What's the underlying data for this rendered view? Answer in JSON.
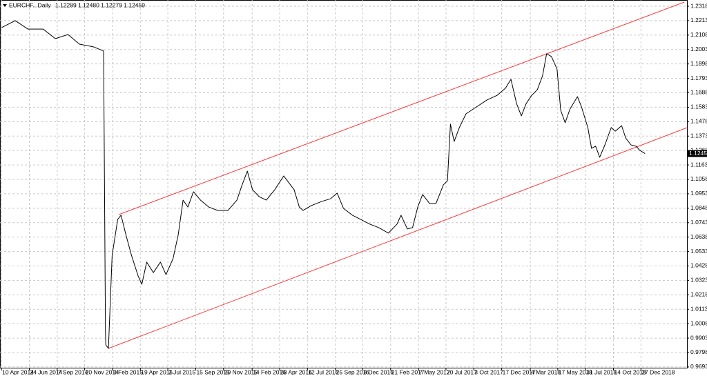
{
  "chart_data": {
    "type": "line",
    "title": "EURCHF...Daily",
    "subtitle": "1.12289 1.12480 1.12279 1.12459",
    "last_price": 1.12459,
    "grid": true,
    "xlim": [
      "6 Apr 2014",
      "30 Apr 2019"
    ],
    "xticks": [
      "10 Apr 2014",
      "24 Jun 2014",
      "7 Sep 2014",
      "20 Nov 2014",
      "3 Feb 2015",
      "19 Apr 2015",
      "2 Jul 2015",
      "15 Sep 2015",
      "29 Nov 2015",
      "14 Feb 2016",
      "28 Apr 2016",
      "12 Jul 2016",
      "25 Sep 2016",
      "8 Dec 2016",
      "21 Feb 2017",
      "7 May 2017",
      "20 Jul 2017",
      "3 Oct 2017",
      "17 Dec 2017",
      "4 Mar 2018",
      "17 May 2018",
      "31 Jul 2018",
      "14 Oct 2018",
      "27 Dec 2018"
    ],
    "ylim": [
      0.96875,
      1.23632
    ],
    "yticks": [
      {
        "value": 1.2318,
        "label": "1.23180"
      },
      {
        "value": 1.2213,
        "label": "1.22130"
      },
      {
        "value": 1.2108,
        "label": "1.21080"
      },
      {
        "value": 1.2003,
        "label": "1.20030"
      },
      {
        "value": 1.1898,
        "label": "1.18980"
      },
      {
        "value": 1.1793,
        "label": "1.17930"
      },
      {
        "value": 1.1688,
        "label": "1.16880"
      },
      {
        "value": 1.1583,
        "label": "1.15830"
      },
      {
        "value": 1.1478,
        "label": "1.14780"
      },
      {
        "value": 1.1373,
        "label": "1.13730"
      },
      {
        "value": 1.1268,
        "label": "1.12680"
      },
      {
        "value": 1.1163,
        "label": "1.11630"
      },
      {
        "value": 1.1058,
        "label": "1.10580"
      },
      {
        "value": 1.0953,
        "label": "1.09530"
      },
      {
        "value": 1.0848,
        "label": "1.08480"
      },
      {
        "value": 1.0743,
        "label": "1.07430"
      },
      {
        "value": 1.0638,
        "label": "1.06380"
      },
      {
        "value": 1.0533,
        "label": "1.05330"
      },
      {
        "value": 1.0428,
        "label": "1.04280"
      },
      {
        "value": 1.0323,
        "label": "1.03230"
      },
      {
        "value": 1.0218,
        "label": "1.02180"
      },
      {
        "value": 1.0113,
        "label": "1.01130"
      },
      {
        "value": 1.0008,
        "label": "1.00080"
      },
      {
        "value": 0.9903,
        "label": "0.99030"
      },
      {
        "value": 0.9798,
        "label": "0.97980"
      },
      {
        "value": 0.9693,
        "label": "0.96930"
      }
    ],
    "series": [
      {
        "color": "#000000",
        "x": [
          "10 Apr 2014",
          "17 May 2014",
          "20 Jun 2014",
          "31 Jul 2014",
          "2 Sep 2014",
          "6 Oct 2014",
          "6 Nov 2014",
          "14 Dec 2014",
          "10 Jan 2015",
          "15 Jan 2015",
          "16 Jan 2015",
          "23 Jan 2015",
          "2 Feb 2015",
          "17 Feb 2015",
          "26 Feb 2015",
          "11 Mar 2015",
          "26 Mar 2015",
          "13 Apr 2015",
          "23 Apr 2015",
          "6 May 2015",
          "24 May 2015",
          "12 Jun 2015",
          "27 Jun 2015",
          "16 Jul 2015",
          "30 Jul 2015",
          "12 Aug 2015",
          "25 Aug 2015",
          "9 Sep 2015",
          "28 Sep 2015",
          "20 Oct 2015",
          "13 Nov 2015",
          "11 Dec 2015",
          "4 Jan 2016",
          "18 Jan 2016",
          "1 Feb 2016",
          "15 Feb 2016",
          "4 Mar 2016",
          "23 Mar 2016",
          "15 Apr 2016",
          "9 May 2016",
          "23 May 2016",
          "6 Jun 2016",
          "20 Jun 2016",
          "30 Jun 2016",
          "22 Jul 2016",
          "19 Aug 2016",
          "12 Sep 2016",
          "30 Sep 2016",
          "17 Oct 2016",
          "10 Nov 2016",
          "2 Dec 2016",
          "27 Dec 2016",
          "20 Jan 2017",
          "15 Feb 2017",
          "10 Mar 2017",
          "21 Mar 2017",
          "7 Apr 2017",
          "21 Apr 2017",
          "5 May 2017",
          "18 May 2017",
          "6 Jun 2017",
          "23 Jun 2017",
          "13 Jul 2017",
          "24 Jul 2017",
          "1 Aug 2017",
          "11 Aug 2017",
          "25 Aug 2017",
          "12 Sep 2017",
          "10 Oct 2017",
          "7 Nov 2017",
          "5 Dec 2017",
          "27 Dec 2017",
          "11 Jan 2018",
          "26 Jan 2018",
          "8 Feb 2018",
          "21 Feb 2018",
          "8 Mar 2018",
          "23 Mar 2018",
          "6 Apr 2018",
          "17 Apr 2018",
          "30 Apr 2018",
          "15 May 2018",
          "25 May 2018",
          "6 Jun 2018",
          "19 Jun 2018",
          "9 Jul 2018",
          "20 Jul 2018",
          "6 Aug 2018",
          "16 Aug 2018",
          "27 Aug 2018",
          "7 Sep 2018",
          "21 Sep 2018",
          "8 Oct 2018",
          "19 Oct 2018",
          "5 Nov 2018",
          "16 Nov 2018",
          "30 Nov 2018",
          "14 Dec 2018",
          "24 Dec 2018",
          "7 Jan 2019"
        ],
        "values": [
          1.2162,
          1.2213,
          1.2152,
          1.2152,
          1.2082,
          1.2112,
          1.2042,
          1.2022,
          1.1992,
          0.9954,
          0.9853,
          0.9828,
          1.0506,
          1.0767,
          1.0797,
          1.0656,
          1.0506,
          1.0355,
          1.0295,
          1.0456,
          1.038,
          1.0456,
          1.0365,
          1.0481,
          1.0656,
          1.0907,
          1.0857,
          1.0968,
          1.0907,
          1.0857,
          1.0832,
          1.0832,
          1.0907,
          1.1018,
          1.1118,
          1.0983,
          1.0932,
          1.0907,
          1.0983,
          1.1083,
          1.1033,
          1.0983,
          1.0857,
          1.0832,
          1.0867,
          1.0897,
          1.0917,
          1.0958,
          1.0847,
          1.0797,
          1.0767,
          1.0732,
          1.0707,
          1.0667,
          1.0732,
          1.0797,
          1.0697,
          1.0707,
          1.0857,
          1.0948,
          1.0882,
          1.0882,
          1.1018,
          1.1048,
          1.146,
          1.1334,
          1.1435,
          1.1535,
          1.1585,
          1.1635,
          1.167,
          1.1721,
          1.1786,
          1.161,
          1.152,
          1.161,
          1.167,
          1.1711,
          1.1811,
          1.1972,
          1.1952,
          1.1861,
          1.156,
          1.147,
          1.157,
          1.166,
          1.1585,
          1.1435,
          1.1284,
          1.1299,
          1.1219,
          1.1309,
          1.1435,
          1.1409,
          1.1449,
          1.1359,
          1.1309,
          1.1299,
          1.1269,
          1.12459
        ]
      }
    ],
    "channel_lines": [
      {
        "color": "#ff3b3b",
        "x": [
          "20 Feb 2015",
          "23 Apr 2019"
        ],
        "values": [
          1.0802,
          1.2348
        ]
      },
      {
        "color": "#ff3b3b",
        "x": [
          "23 Jan 2015",
          "30 Apr 2019"
        ],
        "values": [
          0.9828,
          1.1434
        ]
      }
    ]
  }
}
